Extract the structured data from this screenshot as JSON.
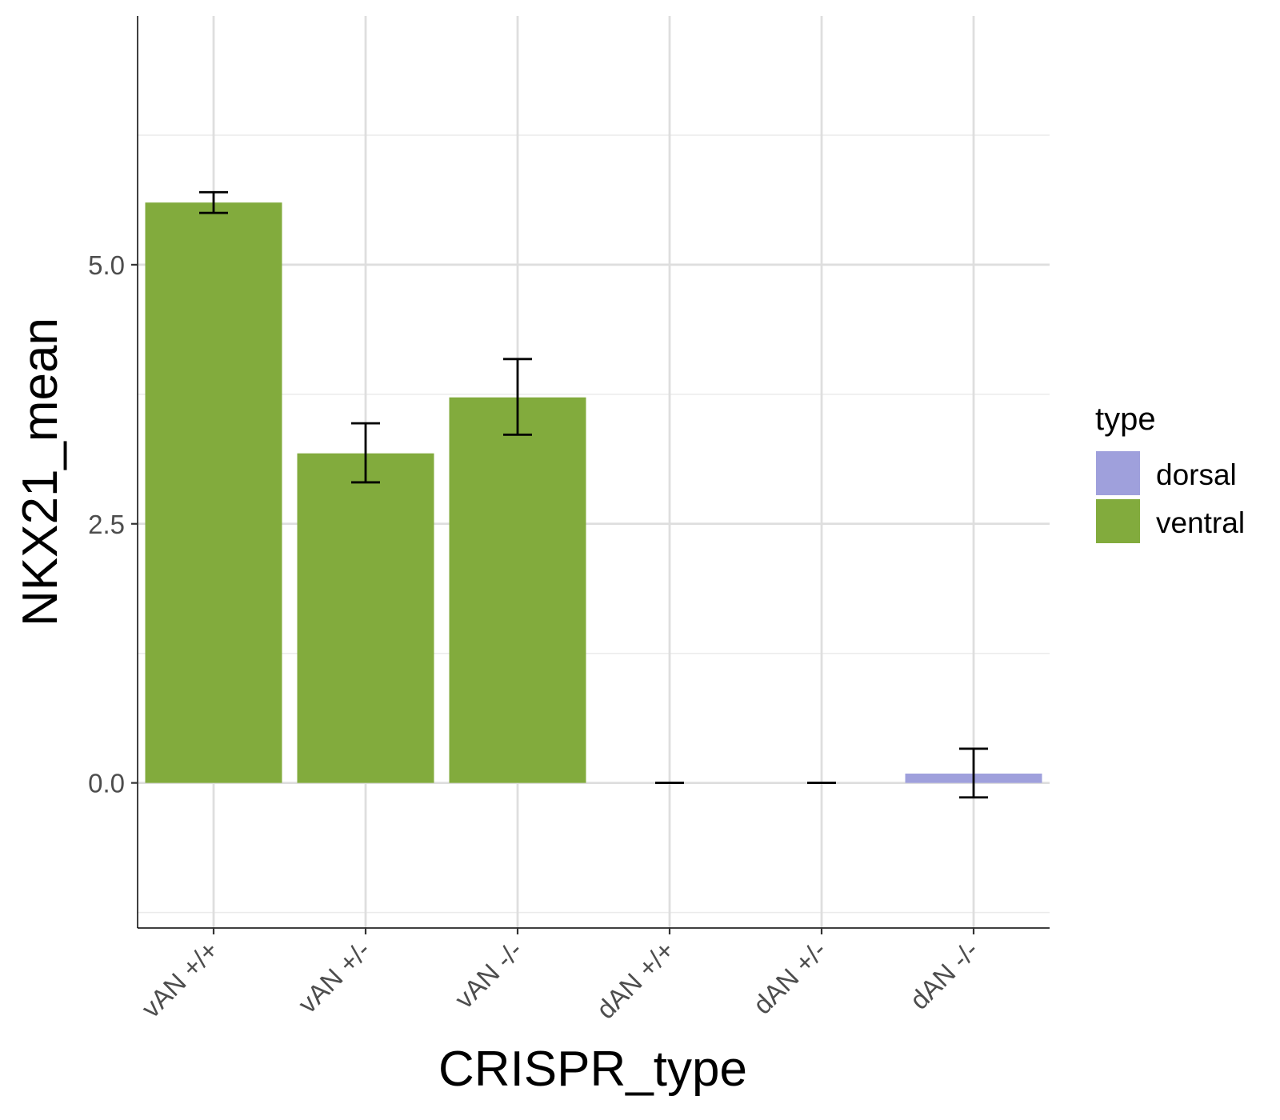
{
  "chart_data": {
    "type": "bar",
    "xlabel": "CRISPR_type",
    "ylabel": "NKX21_mean",
    "categories": [
      "vAN +/+",
      "vAN +/-",
      "vAN -/-",
      "dAN +/+",
      "dAN +/-",
      "dAN -/-"
    ],
    "values": [
      5.6,
      3.18,
      3.72,
      0.0,
      0.0,
      0.09
    ],
    "error_low": [
      5.5,
      2.9,
      3.36,
      0.0,
      0.0,
      -0.14
    ],
    "error_high": [
      5.7,
      3.47,
      4.09,
      0.0,
      0.0,
      0.33
    ],
    "fill_type": [
      "ventral",
      "ventral",
      "ventral",
      "dorsal",
      "dorsal",
      "dorsal"
    ],
    "ylim": [
      -1.4,
      7.4
    ],
    "yticks": [
      0.0,
      2.5,
      5.0
    ],
    "ytick_labels": [
      "0.0",
      "2.5",
      "5.0"
    ],
    "grid": true,
    "legend": {
      "title": "type",
      "placement": "right",
      "entries": [
        {
          "label": "dorsal",
          "color": "#9fa0dc"
        },
        {
          "label": "ventral",
          "color": "#82ab3d"
        }
      ]
    }
  }
}
